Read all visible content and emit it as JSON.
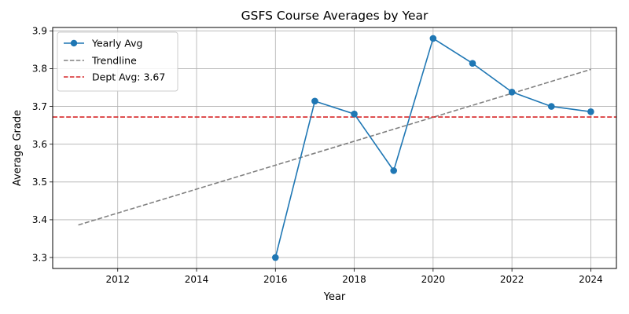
{
  "chart_data": {
    "type": "line",
    "title": "GSFS Course Averages by Year",
    "xlabel": "Year",
    "ylabel": "Average Grade",
    "xlim": [
      2010.35,
      2024.65
    ],
    "ylim": [
      3.271,
      3.909
    ],
    "x_ticks": [
      2012,
      2014,
      2016,
      2018,
      2020,
      2022,
      2024
    ],
    "y_ticks": [
      3.3,
      3.4,
      3.5,
      3.6,
      3.7,
      3.8,
      3.9
    ],
    "x_tick_labels": [
      "2012",
      "2014",
      "2016",
      "2018",
      "2020",
      "2022",
      "2024"
    ],
    "y_tick_labels": [
      "3.3",
      "3.4",
      "3.5",
      "3.6",
      "3.7",
      "3.8",
      "3.9"
    ],
    "grid": true,
    "legend_position": "top-left",
    "series": [
      {
        "name": "Yearly Avg",
        "style": "solid-markers",
        "color": "#1f77b4",
        "x": [
          2016,
          2017,
          2018,
          2019,
          2020,
          2021,
          2022,
          2023,
          2024
        ],
        "values": [
          3.3,
          3.714,
          3.68,
          3.53,
          3.88,
          3.814,
          3.738,
          3.7,
          3.686
        ]
      },
      {
        "name": "Trendline",
        "style": "dashed",
        "color": "#808080",
        "x": [
          2011,
          2024
        ],
        "values": [
          3.386,
          3.798
        ]
      },
      {
        "name": "Dept Avg: 3.67",
        "style": "dashed-hline",
        "color": "#d62728",
        "y": 3.672
      }
    ]
  }
}
